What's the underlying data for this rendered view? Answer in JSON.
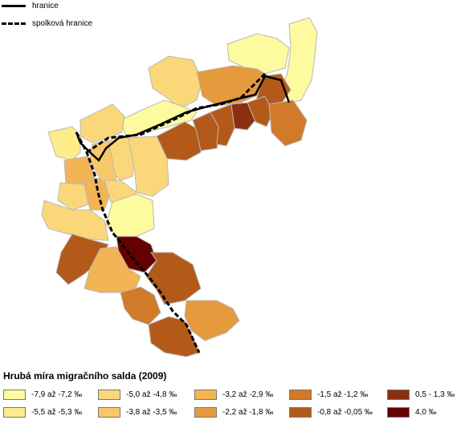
{
  "line_legend": {
    "border": "hranice",
    "state_border": "spolková hranice"
  },
  "legend": {
    "title": "Hrubá míra migračního salda (2009)",
    "classes": [
      {
        "label": "-7,9 až -7,2 ‰",
        "color": "#fdfaa0"
      },
      {
        "label": "-5,5 až -5,3 ‰",
        "color": "#fcec8a"
      },
      {
        "label": "-5,0 až -4,8 ‰",
        "color": "#fad87a"
      },
      {
        "label": "-3,8 až -3,5 ‰",
        "color": "#f7c86a"
      },
      {
        "label": "-3,2 až -2,9 ‰",
        "color": "#f2b455"
      },
      {
        "label": "-2,2 až -1,8 ‰",
        "color": "#e69a3e"
      },
      {
        "label": "-1,5 až -1,2 ‰",
        "color": "#d07a2a"
      },
      {
        "label": "-0,8 až -0,05 ‰",
        "color": "#b35a1a"
      },
      {
        "label": "0,5 - 1,3 ‰",
        "color": "#8a3010"
      },
      {
        "label": "4,0 ‰",
        "color": "#640000"
      }
    ]
  }
}
